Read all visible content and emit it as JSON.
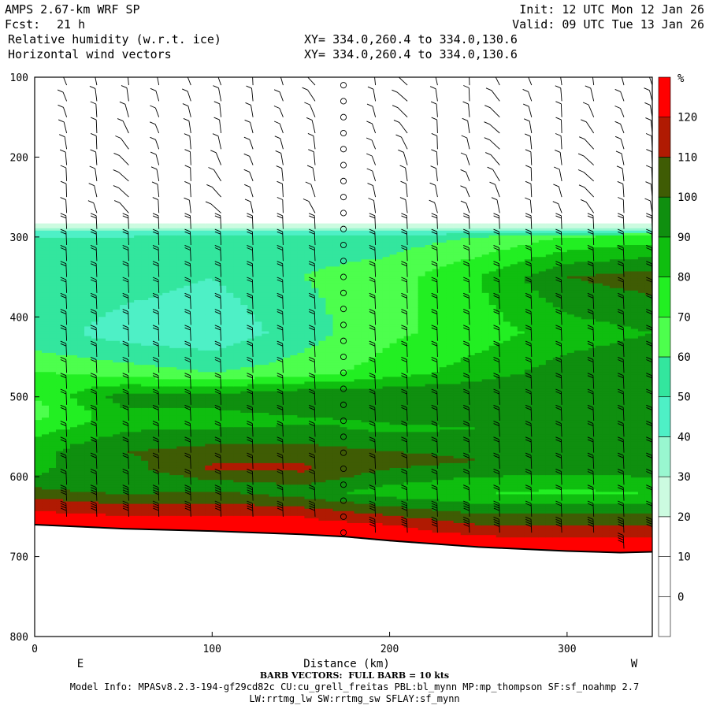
{
  "header": {
    "model": "AMPS 2.67-km WRF SP",
    "fcst_label": "Fcst:",
    "fcst_value": "21 h",
    "init": "Init: 12 UTC Mon 12 Jan 26",
    "valid": "Valid: 09 UTC Tue 13 Jan 26",
    "field1": "Relative humidity (w.r.t. ice)",
    "field2": "Horizontal wind vectors",
    "xy1": "XY= 334.0,260.4 to 334.0,130.6",
    "xy2": "XY= 334.0,260.4 to 334.0,130.6"
  },
  "footer": {
    "barb": "BARB VECTORS:  FULL BARB = 10 kts",
    "model_info": "Model Info: MPASv8.2.3-194-gf29cd82c CU:cu_grell_freitas PBL:bl_mynn MP:mp_thompson SF:sf_noahmp 2.7",
    "model_info2": "LW:rrtmg_lw SW:rrtmg_sw SFLAY:sf_mynn"
  },
  "chart_data": {
    "type": "heatmap",
    "title": "Relative humidity (w.r.t. ice)",
    "xlabel": "Distance (km)",
    "ylabel": "",
    "x_range": [
      0,
      348
    ],
    "y_range": [
      100,
      800
    ],
    "y_inverted": true,
    "x_ticks": [
      0,
      100,
      200,
      300
    ],
    "y_ticks": [
      100,
      200,
      300,
      400,
      500,
      600,
      700,
      800
    ],
    "x_direction_labels": {
      "left": "E",
      "right": "W"
    },
    "colorbar": {
      "unit": "%",
      "ticks": [
        0,
        10,
        20,
        30,
        40,
        50,
        60,
        70,
        80,
        90,
        100,
        110,
        120
      ],
      "colors": [
        "#ffffff",
        "#ffffff",
        "#ffffff",
        "#ccfbe0",
        "#99f7d0",
        "#4ef0c6",
        "#33e69e",
        "#4dff4d",
        "#22ef22",
        "#0fbe0f",
        "#0f8f0f",
        "#3f5c04",
        "#b01a02",
        "#ff0000"
      ]
    },
    "terrain_pressure": [
      [
        0,
        660
      ],
      [
        50,
        665
      ],
      [
        100,
        668
      ],
      [
        150,
        672
      ],
      [
        175,
        675
      ],
      [
        200,
        680
      ],
      [
        250,
        688
      ],
      [
        300,
        693
      ],
      [
        330,
        695
      ],
      [
        348,
        694
      ]
    ],
    "rh_profiles": [
      {
        "x": 0,
        "levels": [
          [
            100,
            0
          ],
          [
            280,
            10
          ],
          [
            290,
            35
          ],
          [
            300,
            50
          ],
          [
            350,
            60
          ],
          [
            430,
            55
          ],
          [
            480,
            75
          ],
          [
            520,
            65
          ],
          [
            560,
            85
          ],
          [
            600,
            90
          ],
          [
            630,
            112
          ],
          [
            660,
            130
          ]
        ]
      },
      {
        "x": 50,
        "levels": [
          [
            100,
            0
          ],
          [
            280,
            10
          ],
          [
            290,
            35
          ],
          [
            300,
            50
          ],
          [
            350,
            55
          ],
          [
            420,
            45
          ],
          [
            470,
            65
          ],
          [
            500,
            95
          ],
          [
            530,
            85
          ],
          [
            570,
            100
          ],
          [
            610,
            90
          ],
          [
            640,
            115
          ],
          [
            665,
            130
          ]
        ]
      },
      {
        "x": 100,
        "levels": [
          [
            100,
            0
          ],
          [
            280,
            10
          ],
          [
            290,
            35
          ],
          [
            300,
            55
          ],
          [
            350,
            50
          ],
          [
            420,
            42
          ],
          [
            470,
            60
          ],
          [
            500,
            95
          ],
          [
            530,
            85
          ],
          [
            570,
            105
          ],
          [
            590,
            112
          ],
          [
            610,
            95
          ],
          [
            645,
            118
          ],
          [
            668,
            130
          ]
        ]
      },
      {
        "x": 150,
        "levels": [
          [
            100,
            0
          ],
          [
            280,
            10
          ],
          [
            290,
            35
          ],
          [
            300,
            55
          ],
          [
            350,
            60
          ],
          [
            420,
            55
          ],
          [
            470,
            65
          ],
          [
            500,
            100
          ],
          [
            530,
            88
          ],
          [
            570,
            105
          ],
          [
            590,
            112
          ],
          [
            620,
            95
          ],
          [
            650,
            120
          ],
          [
            672,
            130
          ]
        ]
      },
      {
        "x": 200,
        "levels": [
          [
            100,
            0
          ],
          [
            280,
            10
          ],
          [
            290,
            35
          ],
          [
            300,
            55
          ],
          [
            350,
            65
          ],
          [
            420,
            68
          ],
          [
            470,
            75
          ],
          [
            500,
            100
          ],
          [
            540,
            88
          ],
          [
            580,
            105
          ],
          [
            620,
            85
          ],
          [
            660,
            120
          ],
          [
            680,
            130
          ]
        ]
      },
      {
        "x": 250,
        "levels": [
          [
            100,
            0
          ],
          [
            280,
            10
          ],
          [
            290,
            35
          ],
          [
            300,
            60
          ],
          [
            350,
            80
          ],
          [
            420,
            75
          ],
          [
            470,
            85
          ],
          [
            500,
            100
          ],
          [
            540,
            90
          ],
          [
            580,
            100
          ],
          [
            620,
            80
          ],
          [
            660,
            110
          ],
          [
            688,
            130
          ]
        ]
      },
      {
        "x": 300,
        "levels": [
          [
            100,
            0
          ],
          [
            280,
            10
          ],
          [
            290,
            35
          ],
          [
            300,
            70
          ],
          [
            350,
            100
          ],
          [
            420,
            85
          ],
          [
            470,
            95
          ],
          [
            500,
            100
          ],
          [
            540,
            92
          ],
          [
            580,
            100
          ],
          [
            620,
            78
          ],
          [
            660,
            110
          ],
          [
            693,
            130
          ]
        ]
      },
      {
        "x": 348,
        "levels": [
          [
            100,
            0
          ],
          [
            280,
            10
          ],
          [
            290,
            35
          ],
          [
            300,
            75
          ],
          [
            350,
            105
          ],
          [
            420,
            90
          ],
          [
            470,
            98
          ],
          [
            500,
            100
          ],
          [
            540,
            92
          ],
          [
            580,
            100
          ],
          [
            620,
            80
          ],
          [
            660,
            110
          ],
          [
            694,
            130
          ]
        ]
      }
    ],
    "calm_column_km": 174,
    "wind_columns_km": [
      0,
      18,
      35,
      53,
      70,
      88,
      105,
      123,
      140,
      158,
      174,
      192,
      210,
      227,
      245,
      262,
      280,
      297,
      315,
      332,
      348
    ]
  }
}
